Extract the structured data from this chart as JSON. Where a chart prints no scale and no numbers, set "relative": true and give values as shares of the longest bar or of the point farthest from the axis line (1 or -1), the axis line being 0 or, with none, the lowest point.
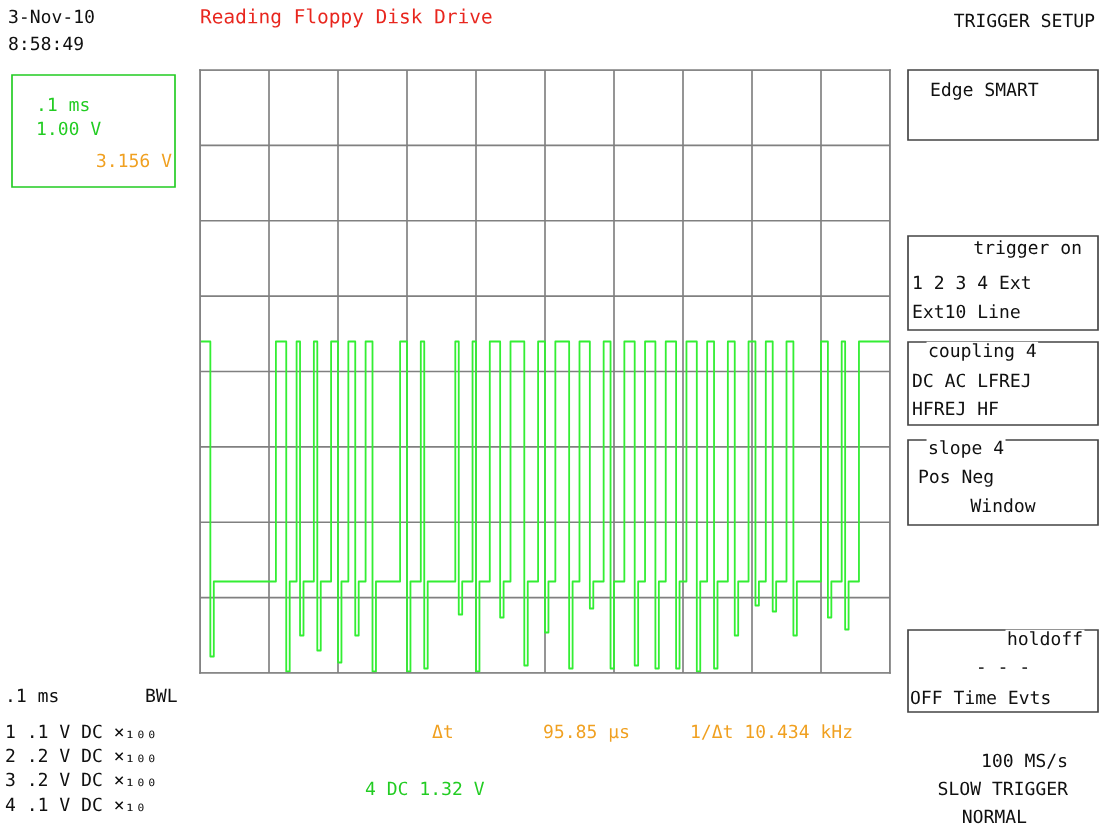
{
  "chart_data": {
    "type": "step",
    "title": "Reading Floppy Disk Drive",
    "relative": true,
    "categories": [
      null,
      null,
      null,
      null,
      null,
      null,
      null,
      null,
      null,
      null,
      null,
      null,
      null,
      null,
      null,
      null,
      null,
      null,
      null,
      null,
      null,
      null,
      null,
      null,
      null,
      null,
      null,
      null,
      null,
      null,
      null,
      null,
      null,
      null,
      null,
      null,
      null,
      null,
      null,
      null,
      null,
      null,
      null,
      null,
      null,
      null,
      null,
      null,
      null,
      null,
      null,
      null,
      null,
      null,
      null,
      null,
      null,
      null,
      null,
      null,
      null,
      null,
      null,
      null,
      null,
      null,
      null,
      null,
      null,
      null,
      null,
      null,
      null,
      null,
      null,
      null,
      null,
      null,
      null,
      null,
      null,
      null,
      null,
      null,
      null,
      null,
      null,
      null,
      null,
      null,
      null,
      null,
      null,
      null,
      null,
      null,
      null,
      null,
      null,
      null,
      null,
      null,
      null,
      null,
      null,
      null,
      null,
      null,
      null,
      null,
      null,
      null,
      null,
      null,
      null,
      null,
      null,
      null,
      null,
      null,
      null,
      null,
      null,
      null,
      null,
      null,
      null,
      null,
      null,
      null,
      null,
      null,
      null,
      null,
      null,
      null,
      null,
      null,
      null,
      null,
      null,
      null,
      null,
      null,
      null,
      null,
      null,
      null,
      null,
      null,
      null,
      null,
      null,
      null,
      null,
      null,
      null,
      null,
      null,
      null,
      null,
      null,
      null,
      null,
      null,
      null,
      null,
      null,
      null,
      null,
      null,
      null,
      null,
      null,
      null,
      null,
      null,
      null,
      null,
      null,
      null,
      null,
      null,
      null,
      null,
      null,
      null,
      null,
      null,
      null,
      null,
      null,
      null,
      null,
      null,
      null,
      null,
      null,
      null,
      null
    ],
    "series": [
      {
        "color": "#33ee33",
        "values": [
          0.1,
          0.1,
          0.1,
          -0.95,
          -0.7,
          -0.7,
          -0.7,
          -0.7,
          -0.7,
          -0.7,
          -0.7,
          -0.7,
          -0.7,
          -0.7,
          -0.7,
          -0.7,
          -0.7,
          -0.7,
          -0.7,
          -0.7,
          -0.7,
          -0.7,
          0.1,
          0.1,
          0.1,
          -1,
          -0.7,
          -0.7,
          0.1,
          -0.88,
          -0.7,
          -0.7,
          -0.7,
          0.1,
          -0.93,
          -0.7,
          -0.7,
          -0.7,
          0.1,
          0.1,
          -0.97,
          -0.7,
          -0.7,
          0.1,
          0.1,
          -0.88,
          -0.7,
          -0.7,
          0.1,
          0.1,
          -1,
          -0.7,
          -0.7,
          -0.7,
          -0.7,
          -0.7,
          -0.7,
          -0.7,
          0.1,
          0.1,
          -1,
          -0.7,
          -0.7,
          -0.7,
          0.1,
          -0.99,
          -0.7,
          -0.7,
          -0.7,
          -0.7,
          -0.7,
          -0.7,
          -0.7,
          -0.7,
          0.1,
          -0.81,
          -0.7,
          -0.7,
          -0.7,
          0.1,
          -1,
          -0.7,
          -0.7,
          -0.7,
          0.1,
          0.1,
          0.1,
          -0.82,
          -0.7,
          -0.7,
          0.1,
          0.1,
          0.1,
          0.1,
          -0.98,
          -0.7,
          -0.7,
          -0.7,
          0.1,
          0.1,
          -0.87,
          -0.7,
          -0.7,
          0.1,
          0.1,
          0.1,
          0.1,
          -0.99,
          -0.7,
          -0.7,
          0.1,
          0.1,
          0.1,
          -0.79,
          -0.7,
          -0.7,
          -0.7,
          0.1,
          0.1,
          -0.99,
          -0.7,
          -0.7,
          -0.7,
          0.1,
          0.1,
          0.1,
          -0.98,
          -0.7,
          -0.7,
          0.1,
          0.1,
          0.1,
          -0.99,
          -0.7,
          -0.7,
          0.1,
          0.1,
          0.1,
          -0.99,
          -0.7,
          -0.7,
          0.1,
          0.1,
          0.1,
          -1,
          -0.7,
          -0.7,
          0.1,
          0.1,
          -0.99,
          -0.7,
          -0.7,
          -0.7,
          0.1,
          0.1,
          -0.88,
          -0.7,
          -0.7,
          -0.7,
          0.1,
          0.1,
          -0.78,
          -0.7,
          -0.7,
          0.1,
          0.1,
          -0.8,
          -0.7,
          -0.7,
          -0.7,
          0.1,
          0.1,
          -0.88,
          -0.7,
          -0.7,
          -0.7,
          -0.7,
          -0.7,
          -0.7,
          -0.7,
          0.1,
          0.1,
          -0.82,
          -0.7,
          -0.7,
          -0.7,
          0.1,
          -0.86,
          -0.7,
          -0.7,
          -0.7,
          0.1,
          0.1,
          0.1,
          0.1,
          0.1,
          0.1,
          0.1,
          0.1,
          0.1
        ]
      }
    ],
    "grid": true,
    "marker": "none",
    "line_style": "solid",
    "legend": false,
    "annotations": [
      "3-Nov-10",
      "8:58:49",
      "TRIGGER SETUP",
      ".1 ms",
      "1.00 V",
      "3.156 V",
      "Edge SMART",
      "trigger on",
      "1 2 3 4 Ext",
      "Ext10 Line",
      "coupling 4",
      "DC AC LFREJ",
      "HFREJ HF",
      "slope 4",
      "Pos Neg",
      "Window",
      "holdoff",
      "- - -",
      "OFF Time Evts",
      ".1 ms",
      "BWL",
      "1 .1 V DC ×₁₀₀",
      "2 .2 V DC ×₁₀₀",
      "3 .2 V DC ×₁₀₀",
      "4 .1 V DC ×₁₀",
      "Δt",
      "95.85 μs",
      "1/Δt 10.434 kHz",
      "4 DC 1.32 V",
      "100 MS/s",
      "SLOW TRIGGER",
      "NORMAL"
    ]
  }
}
